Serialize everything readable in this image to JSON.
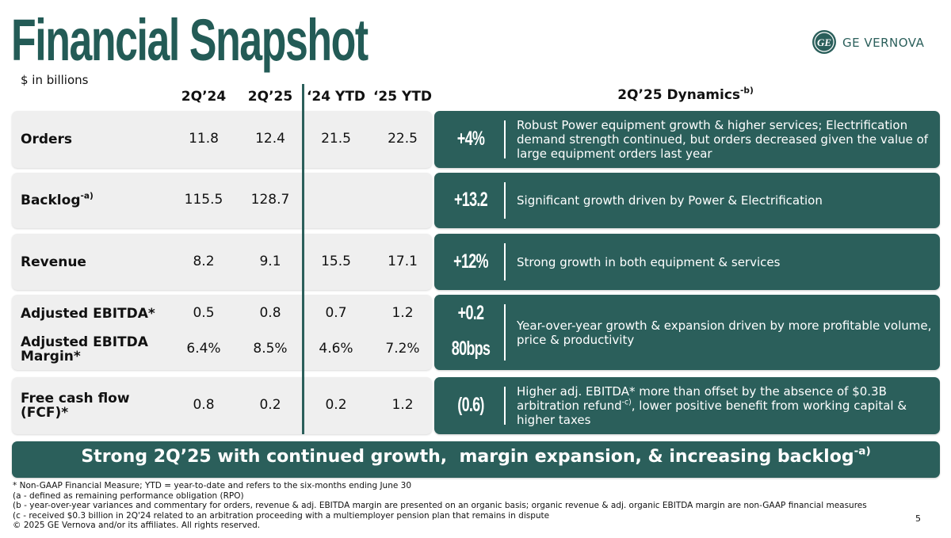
{
  "header": {
    "title": "Financial Snapshot",
    "logo_text": "GE VERNOVA",
    "units": "$ in billions"
  },
  "table": {
    "columns": [
      "2Q’24",
      "2Q’25",
      "‘24 YTD",
      "‘25 YTD"
    ],
    "dynamics_header": {
      "text": "2Q’25 Dynamics",
      "sup": "-b)"
    },
    "rows": [
      {
        "lines": [
          {
            "label": "Orders",
            "values": [
              "11.8",
              "12.4",
              "21.5",
              "22.5"
            ],
            "change": "+4%"
          }
        ],
        "comment": {
          "text": "Robust Power equipment growth & higher services; Electrification demand strength continued, but orders decreased given the value of large equipment orders last year"
        }
      },
      {
        "lines": [
          {
            "label": "Backlog",
            "label_sup": "-a)",
            "values": [
              "115.5",
              "128.7",
              null,
              null
            ],
            "change": "+13.2"
          }
        ],
        "comment": {
          "text": "Significant growth driven by Power & Electrification"
        }
      },
      {
        "lines": [
          {
            "label": "Revenue",
            "values": [
              "8.2",
              "9.1",
              "15.5",
              "17.1"
            ],
            "change": "+12%"
          }
        ],
        "comment": {
          "text": "Strong growth in both equipment & services"
        }
      },
      {
        "lines": [
          {
            "label": "Adjusted EBITDA*",
            "values": [
              "0.5",
              "0.8",
              "0.7",
              "1.2"
            ],
            "change": "+0.2"
          },
          {
            "label": "Adjusted EBITDA Margin*",
            "values": [
              "6.4%",
              "8.5%",
              "4.6%",
              "7.2%"
            ],
            "change": "80bps"
          }
        ],
        "comment": {
          "text": "Year-over-year growth & expansion driven by more profitable volume, price & productivity"
        }
      },
      {
        "lines": [
          {
            "label": "Free cash flow (FCF)*",
            "values": [
              "0.8",
              "0.2",
              "0.2",
              "1.2"
            ],
            "change": "(0.6)"
          }
        ],
        "comment": {
          "text": "Higher adj. EBITDA* more than offset by the absence of $0.3B arbitration refund",
          "sup": "-c)",
          "after": ", lower positive benefit from working capital & higher taxes"
        }
      }
    ]
  },
  "banner": {
    "text": "Strong 2Q’25 with continued growth,  margin expansion, & increasing backlog",
    "sup": "-a)"
  },
  "footnotes": [
    "* Non-GAAP Financial Measure; YTD = year-to-date and refers to the six-months ending June 30",
    "(a - defined as remaining performance obligation (RPO)",
    "(b - year-over-year variances and commentary for orders, revenue & adj. EBITDA margin are presented on an organic basis; organic revenue & adj. organic EBITDA margin are non-GAAP financial measures",
    "(c - received $0.3 billion in 2Q'24 related to an arbitration proceeding with a multiemployer pension plan that remains in dispute",
    "© 2025 GE Vernova and/or its affiliates. All rights reserved."
  ],
  "page_number": "5"
}
